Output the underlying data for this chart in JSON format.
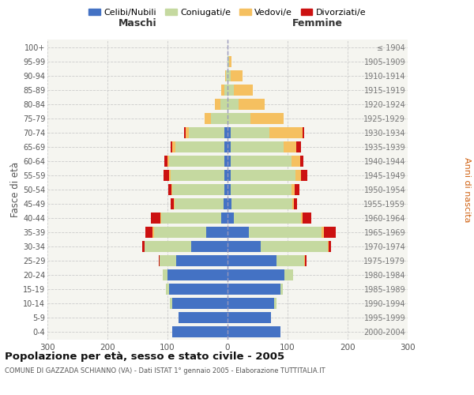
{
  "age_groups": [
    "0-4",
    "5-9",
    "10-14",
    "15-19",
    "20-24",
    "25-29",
    "30-34",
    "35-39",
    "40-44",
    "45-49",
    "50-54",
    "55-59",
    "60-64",
    "65-69",
    "70-74",
    "75-79",
    "80-84",
    "85-89",
    "90-94",
    "95-99",
    "100+"
  ],
  "year_labels": [
    "2000-2004",
    "1995-1999",
    "1990-1994",
    "1985-1989",
    "1980-1984",
    "1975-1979",
    "1970-1974",
    "1965-1969",
    "1960-1964",
    "1955-1959",
    "1950-1954",
    "1945-1949",
    "1940-1944",
    "1935-1939",
    "1930-1934",
    "1925-1929",
    "1920-1924",
    "1915-1919",
    "1910-1914",
    "1905-1909",
    "≤ 1904"
  ],
  "male_celibi": [
    92,
    82,
    92,
    98,
    100,
    85,
    60,
    35,
    10,
    6,
    5,
    5,
    5,
    5,
    5,
    0,
    0,
    0,
    0,
    0,
    0
  ],
  "male_coniugati": [
    0,
    0,
    4,
    4,
    8,
    28,
    78,
    88,
    100,
    82,
    87,
    90,
    92,
    82,
    60,
    28,
    12,
    5,
    2,
    0,
    0
  ],
  "male_vedovi": [
    0,
    0,
    0,
    0,
    0,
    0,
    0,
    2,
    2,
    2,
    2,
    3,
    3,
    5,
    5,
    10,
    9,
    6,
    2,
    0,
    0
  ],
  "male_divorziati": [
    0,
    0,
    0,
    0,
    0,
    2,
    4,
    12,
    15,
    5,
    5,
    8,
    5,
    3,
    3,
    0,
    0,
    0,
    0,
    0,
    0
  ],
  "female_nubili": [
    88,
    72,
    78,
    88,
    95,
    82,
    55,
    35,
    10,
    6,
    5,
    5,
    5,
    5,
    5,
    0,
    0,
    0,
    0,
    0,
    0
  ],
  "female_coniugate": [
    0,
    0,
    4,
    4,
    14,
    45,
    112,
    122,
    112,
    102,
    102,
    108,
    102,
    88,
    65,
    38,
    18,
    10,
    5,
    2,
    0
  ],
  "female_vedove": [
    0,
    0,
    0,
    0,
    0,
    2,
    2,
    3,
    3,
    3,
    5,
    10,
    14,
    22,
    55,
    55,
    44,
    32,
    20,
    5,
    0
  ],
  "female_divorziate": [
    0,
    0,
    0,
    0,
    0,
    3,
    3,
    20,
    15,
    5,
    8,
    10,
    5,
    8,
    3,
    0,
    0,
    0,
    0,
    0,
    0
  ],
  "colors": {
    "celibi": "#4472c4",
    "coniugati": "#c5d9a0",
    "vedovi": "#f5c060",
    "divorziati": "#cc1111"
  },
  "legend_labels": [
    "Celibi/Nubili",
    "Coniugati/e",
    "Vedovi/e",
    "Divorziati/e"
  ],
  "title": "Popolazione per età, sesso e stato civile - 2005",
  "subtitle": "COMUNE DI GAZZADA SCHIANNO (VA) - Dati ISTAT 1° gennaio 2005 - Elaborazione TUTTITALIA.IT",
  "header_left": "Maschi",
  "header_right": "Femmine",
  "ylabel_left": "Fasce di età",
  "ylabel_right": "Anni di nascita",
  "xlim": 300,
  "bg_color": "#ffffff",
  "plot_bg": "#f5f5f0",
  "grid_color": "#cccccc"
}
